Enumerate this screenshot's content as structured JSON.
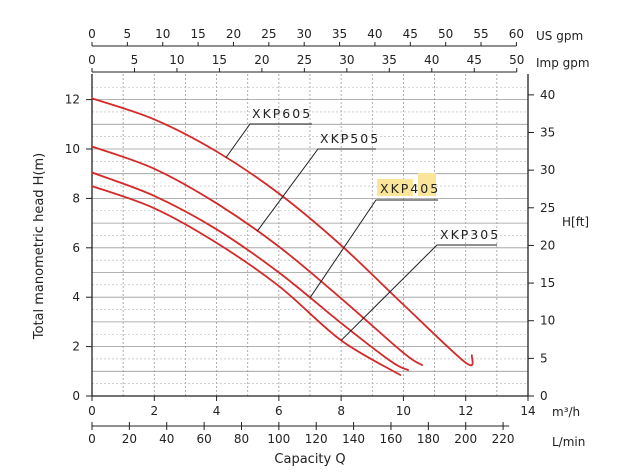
{
  "chart_data": {
    "type": "line",
    "title": "",
    "xlabel": "Capacity Q",
    "ylabel": "Total manometric head H(m)",
    "xlim": [
      0,
      14
    ],
    "ylim": [
      0,
      12.5
    ],
    "grid": true,
    "axes": {
      "bottom_primary": {
        "unit": "m³/h",
        "ticks": [
          0,
          2,
          4,
          6,
          8,
          10,
          12,
          14
        ]
      },
      "bottom_secondary": {
        "unit": "L/min",
        "ticks": [
          0,
          20,
          40,
          60,
          80,
          100,
          120,
          140,
          160,
          180,
          200,
          220
        ]
      },
      "top_primary": {
        "unit": "US gpm",
        "ticks": [
          0,
          5,
          10,
          15,
          20,
          25,
          30,
          35,
          40,
          45,
          50,
          55,
          60
        ]
      },
      "top_secondary": {
        "unit": "Imp gpm",
        "ticks": [
          0,
          5,
          10,
          15,
          20,
          25,
          30,
          35,
          40,
          45,
          50
        ]
      },
      "left": {
        "unit": "H(m)",
        "ticks": [
          0,
          2,
          4,
          6,
          8,
          10,
          12
        ]
      },
      "right": {
        "unit": "H[ft]",
        "ticks": [
          0,
          5,
          10,
          15,
          20,
          25,
          30,
          35,
          40
        ]
      }
    },
    "series": [
      {
        "name": "XKP605",
        "color": "#d42a2a",
        "x": [
          0,
          2,
          4,
          6,
          8,
          10,
          12,
          12.2
        ],
        "y": [
          12.05,
          11.2,
          9.9,
          8.2,
          6.1,
          3.7,
          1.35,
          1.65
        ]
      },
      {
        "name": "XKP505",
        "color": "#d42a2a",
        "x": [
          0,
          2,
          4,
          6,
          8,
          10,
          10.6
        ],
        "y": [
          10.1,
          9.2,
          7.8,
          6.05,
          3.95,
          1.75,
          1.25
        ]
      },
      {
        "name": "XKP405",
        "color": "#d42a2a",
        "x": [
          0,
          2,
          4,
          6,
          8,
          9.6,
          10.15
        ],
        "y": [
          9.05,
          8.1,
          6.75,
          5.0,
          2.95,
          1.4,
          1.05
        ]
      },
      {
        "name": "XKP305",
        "color": "#d42a2a",
        "x": [
          0,
          2,
          4,
          6,
          8,
          9.9
        ],
        "y": [
          8.5,
          7.6,
          6.2,
          4.45,
          2.25,
          0.85
        ]
      }
    ],
    "annotations": [
      {
        "text": "XKP605",
        "highlight": false
      },
      {
        "text": "XKP505",
        "highlight": false
      },
      {
        "text": "XKP405",
        "highlight": true
      },
      {
        "text": "XKP305",
        "highlight": false
      }
    ]
  }
}
